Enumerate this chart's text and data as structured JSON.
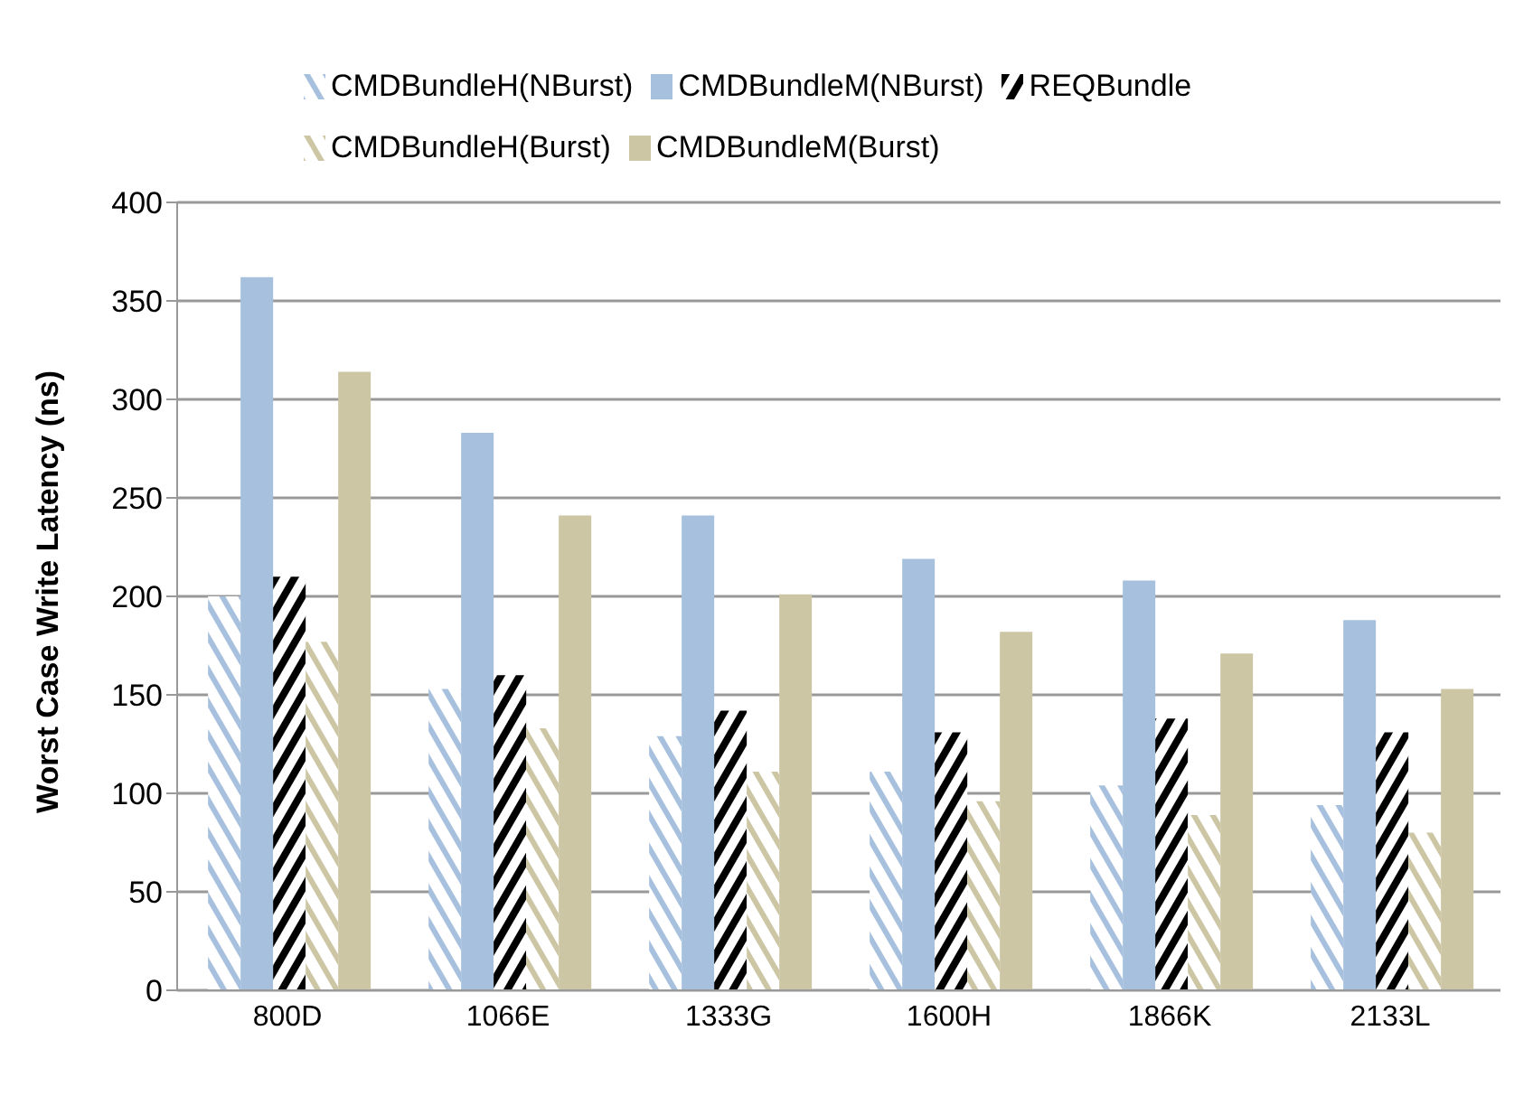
{
  "chart_data": {
    "type": "bar",
    "ylabel": "Worst Case Write Latency (ns)",
    "categories": [
      "800D",
      "1066E",
      "1333G",
      "1600H",
      "1866K",
      "2133L"
    ],
    "series": [
      {
        "name": "CMDBundleH(NBurst)",
        "color": "#a7c0de",
        "values": [
          200,
          153,
          129,
          111,
          104,
          94
        ]
      },
      {
        "name": "CMDBundleM(NBurst)",
        "color": "#a7c0de",
        "values": [
          362,
          283,
          241,
          219,
          208,
          188
        ]
      },
      {
        "name": "REQBundle",
        "color": "#000000",
        "values": [
          210,
          160,
          142,
          131,
          138,
          131
        ]
      },
      {
        "name": "CMDBundleH(Burst)",
        "color": "#cdc6a5",
        "values": [
          177,
          133,
          111,
          96,
          89,
          80
        ]
      },
      {
        "name": "CMDBundleM(Burst)",
        "color": "#cdc6a5",
        "values": [
          314,
          241,
          201,
          182,
          171,
          153
        ]
      }
    ],
    "ylim": [
      0,
      400
    ],
    "yticks": [
      0,
      50,
      100,
      150,
      200,
      250,
      300,
      350,
      400
    ],
    "grid": "y",
    "legend": "top"
  }
}
